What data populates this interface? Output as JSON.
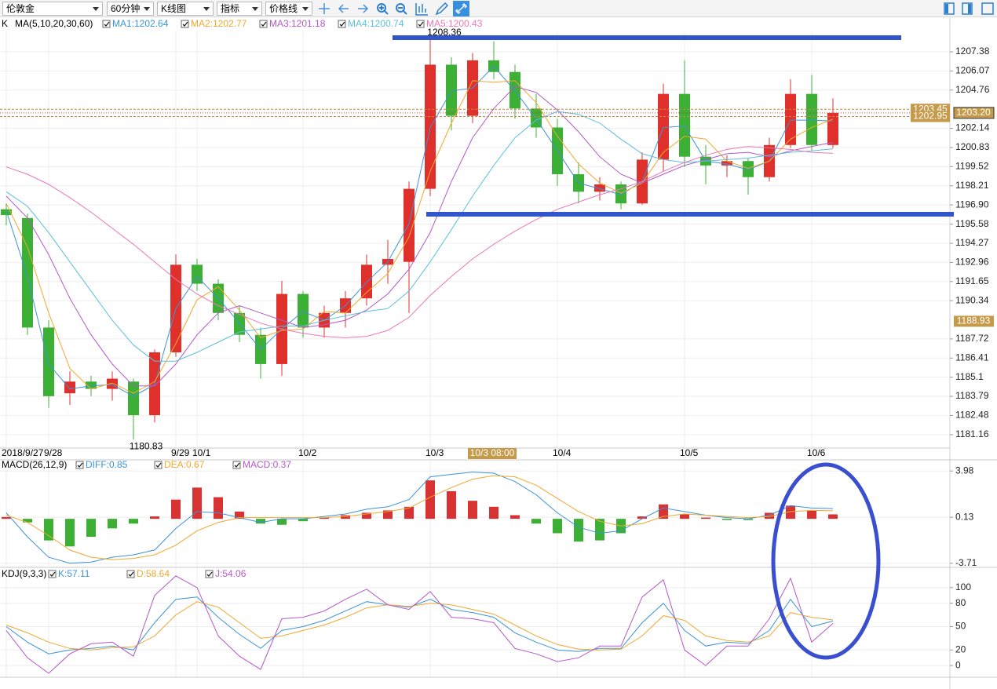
{
  "toolbar": {
    "dropdowns": [
      "伦敦金",
      "60分钟",
      "K线图",
      "指标",
      "价格线"
    ]
  },
  "chart_data": [
    {
      "type": "candlestick",
      "name": "K",
      "indicator": "MA(5,10,20,30,60)",
      "grid": true,
      "categories": [
        "2018/9/27",
        null,
        "9/28",
        null,
        null,
        null,
        null,
        null,
        "9/29",
        "10/1",
        null,
        null,
        null,
        null,
        "10/2",
        null,
        null,
        null,
        null,
        null,
        "10/3",
        null,
        null,
        null,
        null,
        null,
        "10/4",
        null,
        null,
        null,
        null,
        null,
        "10/5",
        null,
        null,
        null,
        null,
        null,
        "10/6",
        null
      ],
      "open": [
        1196.6,
        1196,
        1188.5,
        1184,
        1184.8,
        1184.3,
        1184.8,
        1182.5,
        1186.8,
        1192.8,
        1191.5,
        1189.5,
        1188,
        1186,
        1190.8,
        1188.5,
        1189.5,
        1190.5,
        1192.8,
        1193,
        1198,
        1206.5,
        1203,
        1206.8,
        1206,
        1203.5,
        1202.2,
        1199,
        1197.8,
        1198.3,
        1197,
        1200,
        1204.5,
        1200.2,
        1199.6,
        1199.9,
        1198.8,
        1201,
        1204.5,
        1201
      ],
      "high": [
        1197,
        1196.3,
        1189,
        1185.5,
        1185.2,
        1185.5,
        1185,
        1187,
        1193.5,
        1193.2,
        1191.8,
        1190,
        1188.5,
        1191.7,
        1191,
        1190,
        1191,
        1193.5,
        1194.5,
        1198.5,
        1208.36,
        1207,
        1207.3,
        1208.1,
        1206.5,
        1204.5,
        1202.8,
        1199.8,
        1198.8,
        1198.5,
        1200.5,
        1205.2,
        1206.8,
        1201,
        1200.3,
        1200.1,
        1201.5,
        1205.5,
        1205.8,
        1204.2
      ],
      "low": [
        1195.5,
        1188,
        1183,
        1183.2,
        1183.8,
        1183.5,
        1180.83,
        1182,
        1186.5,
        1191,
        1189,
        1187.5,
        1185,
        1185.2,
        1187.8,
        1187.8,
        1188.5,
        1190,
        1191.5,
        1189.5,
        1197.5,
        1202,
        1202.5,
        1205.5,
        1202.8,
        1201.5,
        1198.2,
        1197,
        1197.2,
        1196.6,
        1196.9,
        1199.2,
        1199.5,
        1198.3,
        1198.8,
        1197.6,
        1198.5,
        1200.8,
        1200.6,
        1200.8
      ],
      "close": [
        1196.2,
        1188.5,
        1183.8,
        1184.8,
        1184.3,
        1185,
        1182.5,
        1186.8,
        1192.8,
        1191.5,
        1189.5,
        1188,
        1186,
        1190.8,
        1188.5,
        1189.5,
        1190.5,
        1192.8,
        1193.2,
        1198,
        1206.5,
        1203,
        1206.8,
        1206,
        1203.5,
        1202.2,
        1199,
        1197.8,
        1198.3,
        1197,
        1200,
        1204.5,
        1200.2,
        1199.6,
        1199.9,
        1198.8,
        1201,
        1204.5,
        1201,
        1203.2
      ],
      "up_color": "#e0302c",
      "down_color": "#3cb034",
      "series": [
        {
          "name": "MA1:1202.64",
          "color": "#3c93d8",
          "values": [
            1196.5,
            1192,
            1186,
            1184.3,
            1184.5,
            1184.6,
            1183.8,
            1184.6,
            1189.8,
            1192,
            1190.5,
            1188.8,
            1187,
            1188.4,
            1189.6,
            1189,
            1190,
            1191.6,
            1193,
            1195.6,
            1202.2,
            1204.7,
            1204.9,
            1206.4,
            1204.7,
            1202.8,
            1200.6,
            1198.4,
            1198,
            1197.6,
            1198.5,
            1202.2,
            1202.3,
            1199.9,
            1199.7,
            1199.3,
            1199.9,
            1202.7,
            1202.7,
            1202.64
          ]
        },
        {
          "name": "MA2:1202.77",
          "color": "#f0a830",
          "values": [
            1197,
            1194,
            1189.5,
            1185.7,
            1184.3,
            1184.7,
            1184,
            1184.8,
            1187.4,
            1190.4,
            1191.3,
            1189.7,
            1187.8,
            1188.3,
            1188.4,
            1189.6,
            1189.5,
            1190.9,
            1192.2,
            1194.7,
            1199.2,
            1202.5,
            1205.4,
            1205.3,
            1205.4,
            1203.9,
            1201.6,
            1199.7,
            1198.4,
            1197.7,
            1198.4,
            1200.5,
            1201.6,
            1201.4,
            1199.9,
            1199.4,
            1199.9,
            1201.4,
            1202.2,
            1202.77
          ]
        },
        {
          "name": "MA3:1201.18",
          "color": "#b458c8",
          "values": [
            1197.5,
            1196,
            1193.5,
            1190.5,
            1188,
            1186,
            1184.5,
            1184.5,
            1186,
            1188,
            1189.5,
            1190,
            1189.5,
            1189,
            1188.5,
            1188.7,
            1189,
            1189.7,
            1190.8,
            1192.5,
            1195,
            1198.5,
            1201.5,
            1203.5,
            1205,
            1204.6,
            1203.4,
            1201.9,
            1200.2,
            1199,
            1198.4,
            1199,
            1199.6,
            1200,
            1200.4,
            1200.5,
            1200.2,
            1200.6,
            1200.9,
            1201.18
          ]
        },
        {
          "name": "MA4:1200.74",
          "color": "#5cc0dc",
          "values": [
            1197.8,
            1196.8,
            1195,
            1193,
            1191,
            1189,
            1187.3,
            1186.2,
            1186.2,
            1186.8,
            1187.5,
            1188.2,
            1188.4,
            1188.6,
            1188.6,
            1189,
            1189.3,
            1189.6,
            1189.8,
            1191,
            1193,
            1195.2,
            1197.5,
            1199.6,
            1201.5,
            1202.7,
            1203.3,
            1203.1,
            1202.5,
            1201.4,
            1200.4,
            1200,
            1199.8,
            1199.9,
            1200,
            1200.1,
            1200.3,
            1200.5,
            1200.6,
            1200.74
          ]
        },
        {
          "name": "MA5:1200.43",
          "color": "#e878b8",
          "values": [
            1199.5,
            1199,
            1198.3,
            1197.4,
            1196.4,
            1195.3,
            1194.2,
            1193,
            1191.8,
            1190.8,
            1190,
            1189.4,
            1188.8,
            1188.4,
            1188.1,
            1187.9,
            1187.8,
            1187.9,
            1188.3,
            1189.2,
            1190.7,
            1192,
            1193.2,
            1194.2,
            1195.1,
            1195.9,
            1196.6,
            1197.1,
            1197.6,
            1198,
            1198.5,
            1199.2,
            1199.8,
            1200.3,
            1200.7,
            1200.9,
            1200.8,
            1200.7,
            1200.5,
            1200.43
          ]
        }
      ],
      "ylim": [
        1180.3,
        1208.78
      ],
      "yticks": [
        1207.38,
        1206.07,
        1204.76,
        1202.14,
        1200.83,
        1199.52,
        1198.21,
        {
          "value": 1196.9,
          "label": "1196.90"
        },
        1195.58,
        1194.27,
        1192.96,
        1191.65,
        1190.34,
        1187.72,
        1186.41,
        1185.1,
        1183.79,
        1182.48,
        1181.16
      ],
      "high_label": 1208.36,
      "low_label": 1180.83,
      "price_lines": [
        1203.45,
        1202.95
      ],
      "price_tags": [
        {
          "value": 1203.2,
          "label": "1203.20"
        },
        1188.93
      ],
      "crosshair_label": "10/3 08:00"
    },
    {
      "type": "macd",
      "title": "MACD(26,12,9)",
      "histogram": {
        "name": "MACD:0.37",
        "up_color": "#d83232",
        "down_color": "#3cb034",
        "values": [
          0.15,
          -0.3,
          -1.8,
          -2.3,
          -1.5,
          -0.8,
          -0.4,
          0.2,
          1.6,
          2.6,
          1.8,
          0.6,
          -0.4,
          -0.5,
          -0.2,
          0.1,
          0.3,
          0.5,
          0.7,
          1,
          3.2,
          2.3,
          1.5,
          1,
          0.3,
          -0.4,
          -1.2,
          -1.9,
          -1.8,
          -1.2,
          0.2,
          1.2,
          0.4,
          0.1,
          -0.1,
          -0.1,
          0.5,
          1.1,
          0.7,
          0.37
        ]
      },
      "series": [
        {
          "name": "DIFF:0.85",
          "color": "#3c93d8",
          "values": [
            0.5,
            -1.5,
            -3.2,
            -3.7,
            -3.6,
            -3.2,
            -3,
            -2.6,
            -0.8,
            0.6,
            0.5,
            0.1,
            -0.3,
            0,
            0,
            0.2,
            0.4,
            0.8,
            1,
            1.6,
            3.5,
            3.7,
            3.9,
            3.8,
            3.1,
            2,
            0.5,
            -0.7,
            -1.2,
            -1,
            0,
            0.9,
            0.6,
            0.3,
            0.1,
            0,
            0.3,
            1.1,
            0.9,
            0.85
          ]
        },
        {
          "name": "DEA:0.67",
          "color": "#f0a830",
          "values": [
            0.3,
            -0.3,
            -1.4,
            -2.6,
            -3.2,
            -3.4,
            -3.3,
            -3,
            -2.2,
            -1,
            -0.3,
            0.1,
            0.1,
            0.1,
            0.1,
            0.1,
            0.2,
            0.4,
            0.6,
            0.9,
            1.8,
            2.6,
            3.3,
            3.6,
            3.5,
            2.8,
            1.7,
            0.6,
            -0.2,
            -0.6,
            -0.4,
            0.2,
            0.4,
            0.3,
            0.2,
            0.1,
            0.2,
            0.6,
            0.7,
            0.67
          ]
        }
      ],
      "ylim": [
        -3.98,
        4.78
      ],
      "yticks": [
        3.98,
        0.13,
        -3.71
      ]
    },
    {
      "type": "line",
      "title": "KDJ(9,3,3)",
      "series": [
        {
          "name": "K:57.11",
          "color": "#3c93d8",
          "values": [
            50,
            30,
            15,
            20,
            22,
            25,
            20,
            55,
            85,
            88,
            62,
            40,
            22,
            45,
            50,
            58,
            70,
            82,
            78,
            75,
            85,
            72,
            68,
            62,
            42,
            30,
            20,
            18,
            22,
            22,
            55,
            80,
            45,
            25,
            30,
            28,
            45,
            85,
            50,
            57.11
          ]
        },
        {
          "name": "D:58.64",
          "color": "#f0a830",
          "values": [
            52,
            42,
            30,
            22,
            20,
            23,
            24,
            38,
            65,
            82,
            75,
            55,
            35,
            38,
            45,
            52,
            62,
            74,
            78,
            76,
            80,
            78,
            72,
            66,
            52,
            38,
            27,
            21,
            20,
            21,
            38,
            64,
            58,
            38,
            32,
            30,
            38,
            68,
            62,
            58.64
          ]
        },
        {
          "name": "J:54.06",
          "color": "#b458c8",
          "values": [
            45,
            10,
            -10,
            15,
            28,
            30,
            12,
            90,
            115,
            100,
            38,
            12,
            -5,
            60,
            62,
            70,
            85,
            98,
            78,
            72,
            95,
            62,
            60,
            55,
            22,
            15,
            5,
            10,
            25,
            25,
            88,
            110,
            20,
            0,
            25,
            25,
            60,
            112,
            30,
            54.06
          ]
        }
      ],
      "ylim": [
        -14,
        122
      ],
      "yticks": [
        100,
        80,
        50,
        20,
        0
      ]
    }
  ]
}
